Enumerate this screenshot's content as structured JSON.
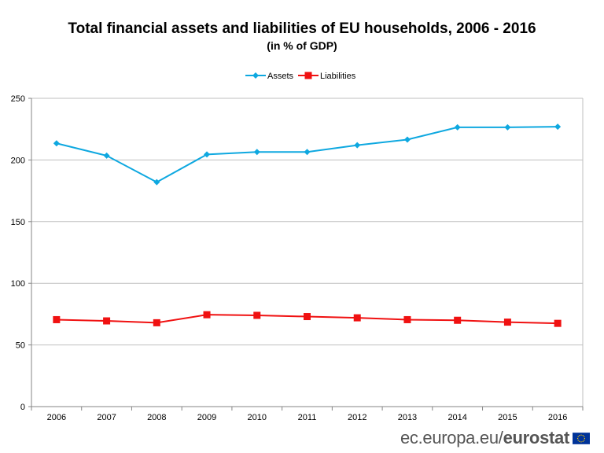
{
  "chart_data": {
    "type": "line",
    "title": "Total financial assets and liabilities of EU households, 2006 - 2016",
    "subtitle": "(in % of GDP)",
    "categories": [
      "2006",
      "2007",
      "2008",
      "2009",
      "2010",
      "2011",
      "2012",
      "2013",
      "2014",
      "2015",
      "2016"
    ],
    "series": [
      {
        "name": "Assets",
        "color": "#0EA8E0",
        "marker": "diamond",
        "values": [
          213.5,
          203.5,
          182,
          204.5,
          206.5,
          206.5,
          212,
          216.5,
          226.5,
          226.5,
          227
        ]
      },
      {
        "name": "Liabilities",
        "color": "#F01111",
        "marker": "square",
        "values": [
          70.5,
          69.5,
          68,
          74.5,
          74,
          73,
          72,
          70.5,
          70,
          68.5,
          67.5
        ]
      }
    ],
    "ylim": [
      0,
      250
    ],
    "yticks": [
      0,
      50,
      100,
      150,
      200,
      250
    ],
    "grid": true,
    "legend_position": "top"
  },
  "footer": {
    "site_prefix": "ec.europa.eu/",
    "site_brand": "eurostat",
    "flag_icon": "eu-flag-icon"
  }
}
